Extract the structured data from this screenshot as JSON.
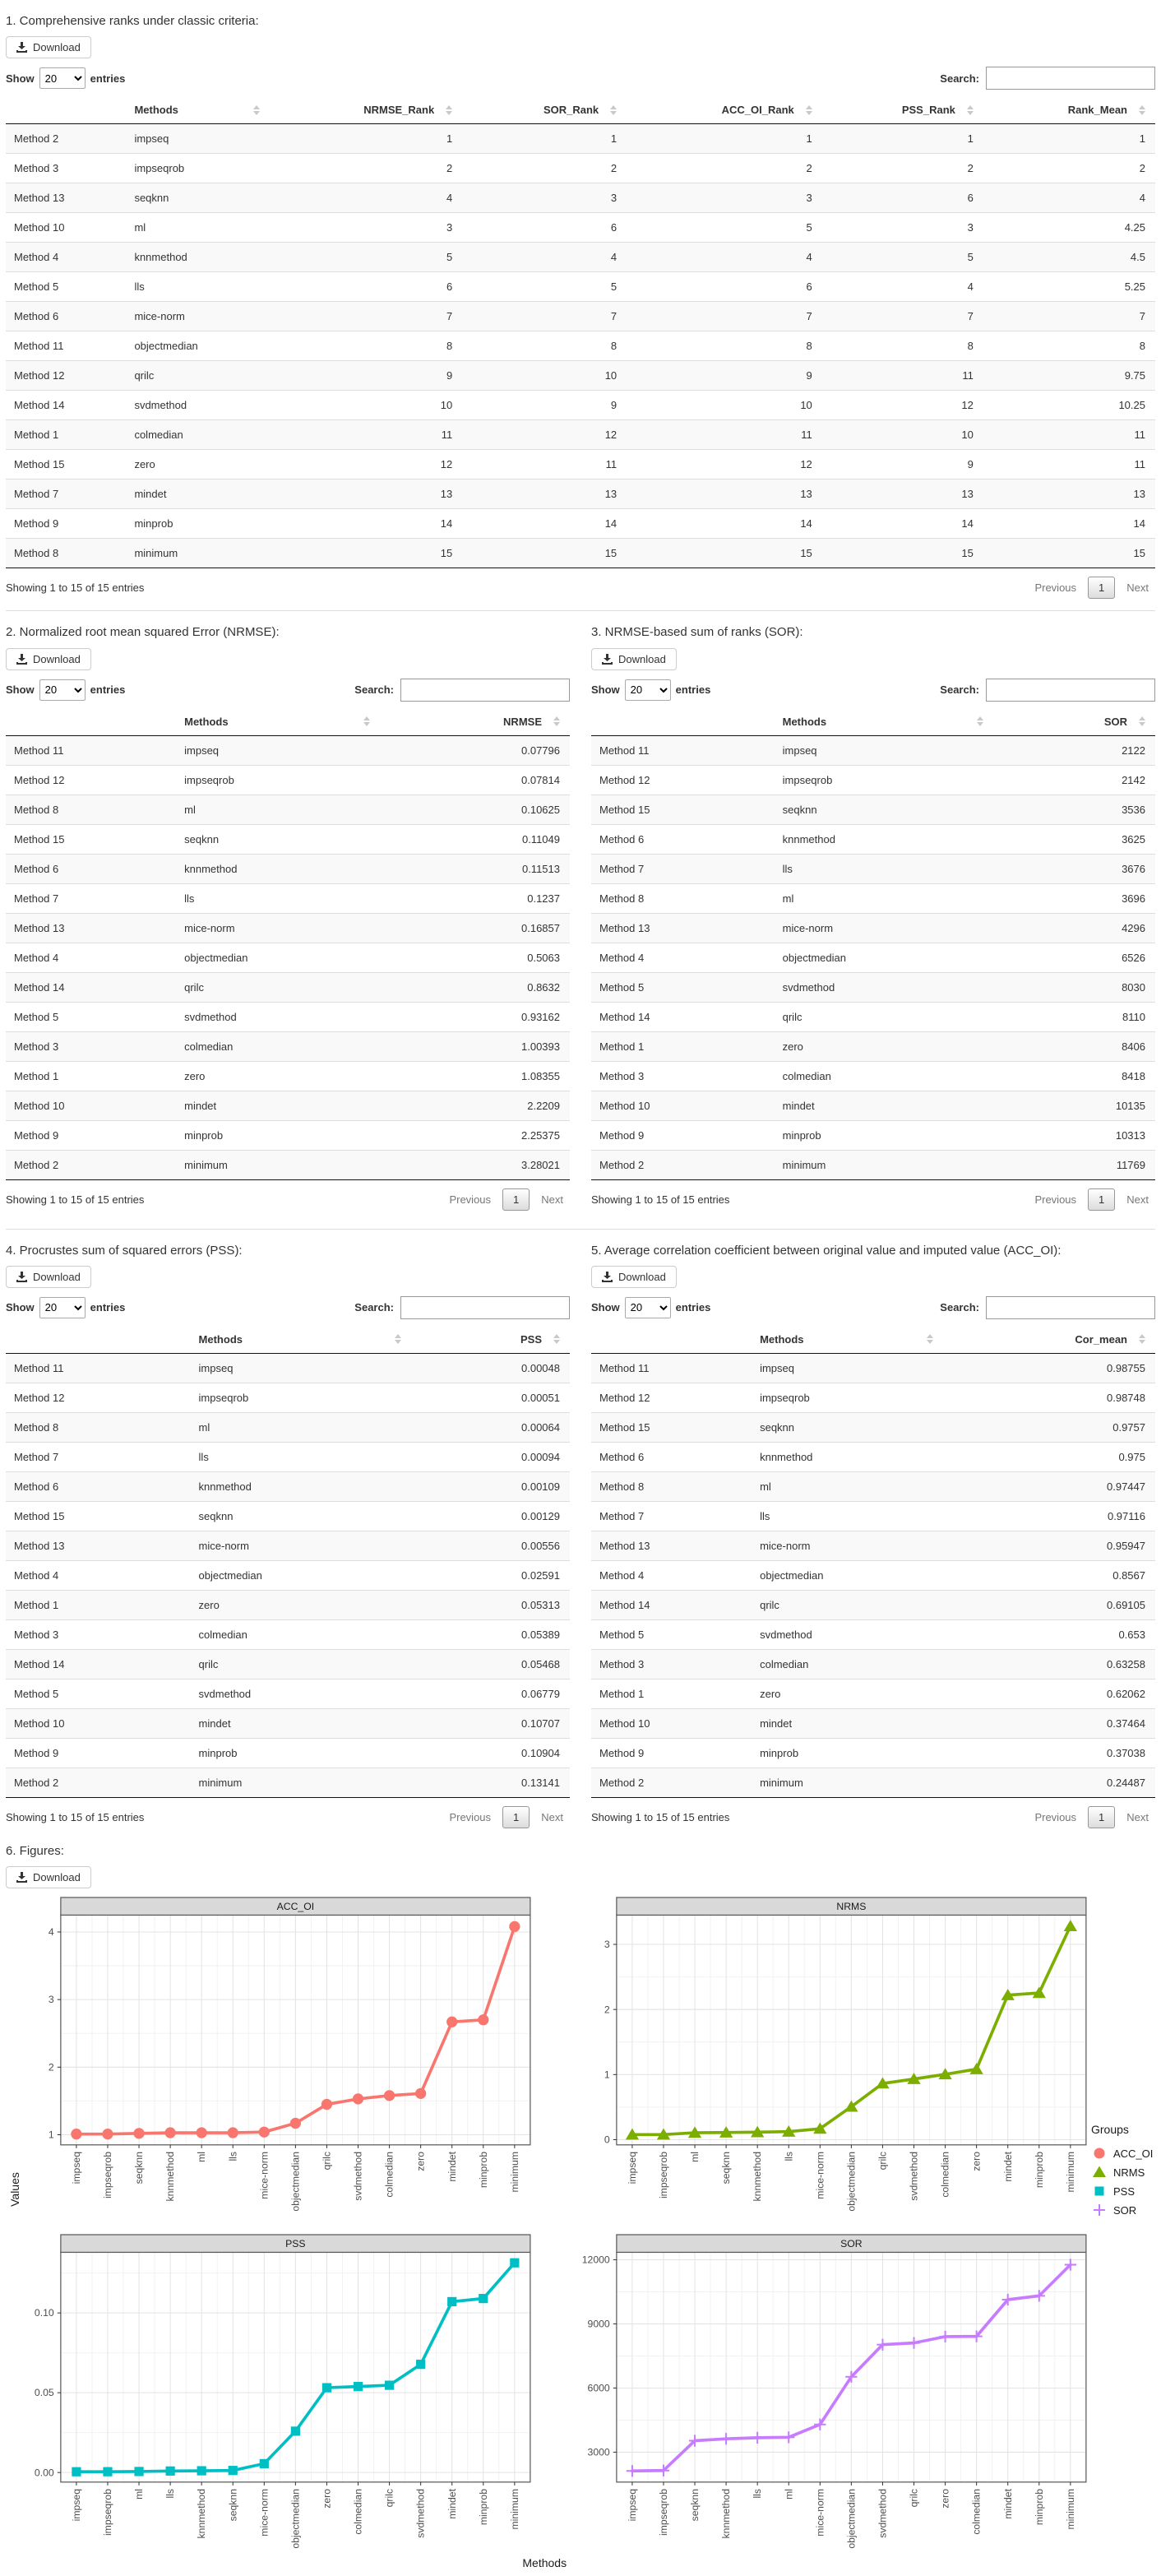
{
  "dt": {
    "download": "Download",
    "show": "Show",
    "show_value": "20",
    "entries": "entries",
    "search": "Search:",
    "info": "Showing 1 to 15 of 15 entries",
    "previous": "Previous",
    "page": "1",
    "next": "Next"
  },
  "sections": {
    "s1": {
      "title": "1. Comprehensive ranks under classic criteria:",
      "table": {
        "headers": [
          "",
          "Methods",
          "NRMSE_Rank",
          "SOR_Rank",
          "ACC_OI_Rank",
          "PSS_Rank",
          "Rank_Mean"
        ],
        "rows": [
          [
            "Method 2",
            "impseq",
            "1",
            "1",
            "1",
            "1",
            "1"
          ],
          [
            "Method 3",
            "impseqrob",
            "2",
            "2",
            "2",
            "2",
            "2"
          ],
          [
            "Method 13",
            "seqknn",
            "4",
            "3",
            "3",
            "6",
            "4"
          ],
          [
            "Method 10",
            "ml",
            "3",
            "6",
            "5",
            "3",
            "4.25"
          ],
          [
            "Method 4",
            "knnmethod",
            "5",
            "4",
            "4",
            "5",
            "4.5"
          ],
          [
            "Method 5",
            "lls",
            "6",
            "5",
            "6",
            "4",
            "5.25"
          ],
          [
            "Method 6",
            "mice-norm",
            "7",
            "7",
            "7",
            "7",
            "7"
          ],
          [
            "Method 11",
            "objectmedian",
            "8",
            "8",
            "8",
            "8",
            "8"
          ],
          [
            "Method 12",
            "qrilc",
            "9",
            "10",
            "9",
            "11",
            "9.75"
          ],
          [
            "Method 14",
            "svdmethod",
            "10",
            "9",
            "10",
            "12",
            "10.25"
          ],
          [
            "Method 1",
            "colmedian",
            "11",
            "12",
            "11",
            "10",
            "11"
          ],
          [
            "Method 15",
            "zero",
            "12",
            "11",
            "12",
            "9",
            "11"
          ],
          [
            "Method 7",
            "mindet",
            "13",
            "13",
            "13",
            "13",
            "13"
          ],
          [
            "Method 9",
            "minprob",
            "14",
            "14",
            "14",
            "14",
            "14"
          ],
          [
            "Method 8",
            "minimum",
            "15",
            "15",
            "15",
            "15",
            "15"
          ]
        ]
      }
    },
    "s2": {
      "title": "2. Normalized root mean squared Error (NRMSE):",
      "table": {
        "headers": [
          "",
          "Methods",
          "NRMSE"
        ],
        "rows": [
          [
            "Method 11",
            "impseq",
            "0.07796"
          ],
          [
            "Method 12",
            "impseqrob",
            "0.07814"
          ],
          [
            "Method 8",
            "ml",
            "0.10625"
          ],
          [
            "Method 15",
            "seqknn",
            "0.11049"
          ],
          [
            "Method 6",
            "knnmethod",
            "0.11513"
          ],
          [
            "Method 7",
            "lls",
            "0.1237"
          ],
          [
            "Method 13",
            "mice-norm",
            "0.16857"
          ],
          [
            "Method 4",
            "objectmedian",
            "0.5063"
          ],
          [
            "Method 14",
            "qrilc",
            "0.8632"
          ],
          [
            "Method 5",
            "svdmethod",
            "0.93162"
          ],
          [
            "Method 3",
            "colmedian",
            "1.00393"
          ],
          [
            "Method 1",
            "zero",
            "1.08355"
          ],
          [
            "Method 10",
            "mindet",
            "2.2209"
          ],
          [
            "Method 9",
            "minprob",
            "2.25375"
          ],
          [
            "Method 2",
            "minimum",
            "3.28021"
          ]
        ]
      }
    },
    "s3": {
      "title": "3. NRMSE-based sum of ranks (SOR):",
      "table": {
        "headers": [
          "",
          "Methods",
          "SOR"
        ],
        "rows": [
          [
            "Method 11",
            "impseq",
            "2122"
          ],
          [
            "Method 12",
            "impseqrob",
            "2142"
          ],
          [
            "Method 15",
            "seqknn",
            "3536"
          ],
          [
            "Method 6",
            "knnmethod",
            "3625"
          ],
          [
            "Method 7",
            "lls",
            "3676"
          ],
          [
            "Method 8",
            "ml",
            "3696"
          ],
          [
            "Method 13",
            "mice-norm",
            "4296"
          ],
          [
            "Method 4",
            "objectmedian",
            "6526"
          ],
          [
            "Method 5",
            "svdmethod",
            "8030"
          ],
          [
            "Method 14",
            "qrilc",
            "8110"
          ],
          [
            "Method 1",
            "zero",
            "8406"
          ],
          [
            "Method 3",
            "colmedian",
            "8418"
          ],
          [
            "Method 10",
            "mindet",
            "10135"
          ],
          [
            "Method 9",
            "minprob",
            "10313"
          ],
          [
            "Method 2",
            "minimum",
            "11769"
          ]
        ]
      }
    },
    "s4": {
      "title": "4. Procrustes sum of squared errors (PSS):",
      "table": {
        "headers": [
          "",
          "Methods",
          "PSS"
        ],
        "rows": [
          [
            "Method 11",
            "impseq",
            "0.00048"
          ],
          [
            "Method 12",
            "impseqrob",
            "0.00051"
          ],
          [
            "Method 8",
            "ml",
            "0.00064"
          ],
          [
            "Method 7",
            "lls",
            "0.00094"
          ],
          [
            "Method 6",
            "knnmethod",
            "0.00109"
          ],
          [
            "Method 15",
            "seqknn",
            "0.00129"
          ],
          [
            "Method 13",
            "mice-norm",
            "0.00556"
          ],
          [
            "Method 4",
            "objectmedian",
            "0.02591"
          ],
          [
            "Method 1",
            "zero",
            "0.05313"
          ],
          [
            "Method 3",
            "colmedian",
            "0.05389"
          ],
          [
            "Method 14",
            "qrilc",
            "0.05468"
          ],
          [
            "Method 5",
            "svdmethod",
            "0.06779"
          ],
          [
            "Method 10",
            "mindet",
            "0.10707"
          ],
          [
            "Method 9",
            "minprob",
            "0.10904"
          ],
          [
            "Method 2",
            "minimum",
            "0.13141"
          ]
        ]
      }
    },
    "s5": {
      "title": "5. Average correlation coefficient between original value and imputed value (ACC_OI):",
      "table": {
        "headers": [
          "",
          "Methods",
          "Cor_mean"
        ],
        "rows": [
          [
            "Method 11",
            "impseq",
            "0.98755"
          ],
          [
            "Method 12",
            "impseqrob",
            "0.98748"
          ],
          [
            "Method 15",
            "seqknn",
            "0.9757"
          ],
          [
            "Method 6",
            "knnmethod",
            "0.975"
          ],
          [
            "Method 8",
            "ml",
            "0.97447"
          ],
          [
            "Method 7",
            "lls",
            "0.97116"
          ],
          [
            "Method 13",
            "mice-norm",
            "0.95947"
          ],
          [
            "Method 4",
            "objectmedian",
            "0.8567"
          ],
          [
            "Method 14",
            "qrilc",
            "0.69105"
          ],
          [
            "Method 5",
            "svdmethod",
            "0.653"
          ],
          [
            "Method 3",
            "colmedian",
            "0.63258"
          ],
          [
            "Method 1",
            "zero",
            "0.62062"
          ],
          [
            "Method 10",
            "mindet",
            "0.37464"
          ],
          [
            "Method 9",
            "minprob",
            "0.37038"
          ],
          [
            "Method 2",
            "minimum",
            "0.24487"
          ]
        ]
      }
    }
  },
  "figures": {
    "title": "6. Figures:",
    "ylabel": "Values",
    "xlabel": "Methods",
    "legend": {
      "title": "Groups",
      "items": [
        {
          "label": "ACC_OI",
          "marker": "circle",
          "color": "#F8766D"
        },
        {
          "label": "NRMS",
          "marker": "triangle",
          "color": "#7CAE00"
        },
        {
          "label": "PSS",
          "marker": "square",
          "color": "#00BFC4"
        },
        {
          "label": "SOR",
          "marker": "plus",
          "color": "#C77CFF"
        }
      ]
    }
  },
  "chart_data": [
    {
      "type": "line",
      "title": "ACC_OI",
      "color": "#F8766D",
      "marker": "circle",
      "categories": [
        "impseq",
        "impseqrob",
        "seqknn",
        "knnmethod",
        "ml",
        "lls",
        "mice-norm",
        "objectmedian",
        "qrilc",
        "svdmethod",
        "colmedian",
        "zero",
        "mindet",
        "minprob",
        "minimum"
      ],
      "values": [
        1.01,
        1.01,
        1.02,
        1.03,
        1.03,
        1.03,
        1.04,
        1.17,
        1.45,
        1.53,
        1.58,
        1.61,
        2.67,
        2.7,
        4.08
      ],
      "yticks": [
        1,
        2,
        3,
        4
      ],
      "ytick_labels": [
        "1",
        "2",
        "3",
        "4"
      ],
      "ylim": [
        0.85,
        4.25
      ],
      "xlabel": "",
      "ylabel": "",
      "grid": true,
      "legend_position": "none"
    },
    {
      "type": "line",
      "title": "NRMS",
      "color": "#7CAE00",
      "marker": "triangle",
      "categories": [
        "impseq",
        "impseqrob",
        "ml",
        "seqknn",
        "knnmethod",
        "lls",
        "mice-norm",
        "objectmedian",
        "qrilc",
        "svdmethod",
        "colmedian",
        "zero",
        "mindet",
        "minprob",
        "minimum"
      ],
      "values": [
        0.07796,
        0.07814,
        0.10625,
        0.11049,
        0.11513,
        0.1237,
        0.16857,
        0.5063,
        0.8632,
        0.93162,
        1.00393,
        1.08355,
        2.2209,
        2.25375,
        3.28021
      ],
      "yticks": [
        0,
        1,
        2,
        3
      ],
      "ytick_labels": [
        "0",
        "1",
        "2",
        "3"
      ],
      "ylim": [
        -0.08,
        3.45
      ],
      "xlabel": "",
      "ylabel": "",
      "grid": true,
      "legend_position": "right"
    },
    {
      "type": "line",
      "title": "PSS",
      "color": "#00BFC4",
      "marker": "square",
      "categories": [
        "impseq",
        "impseqrob",
        "ml",
        "lls",
        "knnmethod",
        "seqknn",
        "mice-norm",
        "objectmedian",
        "zero",
        "colmedian",
        "qrilc",
        "svdmethod",
        "mindet",
        "minprob",
        "minimum"
      ],
      "values": [
        0.00048,
        0.00051,
        0.00064,
        0.00094,
        0.00109,
        0.00129,
        0.00556,
        0.02591,
        0.05313,
        0.05389,
        0.05468,
        0.06779,
        0.10707,
        0.10904,
        0.13141
      ],
      "yticks": [
        0.0,
        0.05,
        0.1
      ],
      "ytick_labels": [
        "0.00",
        "0.05",
        "0.10"
      ],
      "ylim": [
        -0.006,
        0.138
      ],
      "xlabel": "Methods",
      "ylabel": "Values",
      "grid": true,
      "legend_position": "none"
    },
    {
      "type": "line",
      "title": "SOR",
      "color": "#C77CFF",
      "marker": "plus",
      "categories": [
        "impseq",
        "impseqrob",
        "seqknn",
        "knnmethod",
        "lls",
        "ml",
        "mice-norm",
        "objectmedian",
        "svdmethod",
        "qrilc",
        "zero",
        "colmedian",
        "mindet",
        "minprob",
        "minimum"
      ],
      "values": [
        2122,
        2142,
        3536,
        3625,
        3676,
        3696,
        4296,
        6526,
        8030,
        8110,
        8406,
        8418,
        10135,
        10313,
        11769
      ],
      "yticks": [
        3000,
        6000,
        9000,
        12000
      ],
      "ytick_labels": [
        "3000",
        "6000",
        "9000",
        "12000"
      ],
      "ylim": [
        1600,
        12350
      ],
      "xlabel": "",
      "ylabel": "",
      "grid": true,
      "legend_position": "none"
    }
  ]
}
